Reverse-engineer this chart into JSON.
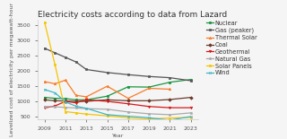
{
  "title": "Electricity costs according to data from Lazard",
  "xlabel": "Year",
  "ylabel": "Levelized cost of electricity per megawatt-hour",
  "years": [
    2009,
    2010,
    2011,
    2012,
    2013,
    2015,
    2017,
    2019,
    2021,
    2023
  ],
  "series": {
    "Nuclear": {
      "color": "#1a9641",
      "marker": "o",
      "values": [
        1130,
        1100,
        1090,
        1050,
        1050,
        1170,
        1480,
        1470,
        1630,
        1720
      ]
    },
    "Gas (peaker)": {
      "color": "#555555",
      "marker": "s",
      "values": [
        2750,
        2600,
        2450,
        2300,
        2050,
        1950,
        1880,
        1820,
        1780,
        1680
      ]
    },
    "Thermal Solar": {
      "color": "#f97b2a",
      "marker": "^",
      "values": [
        1650,
        1580,
        1700,
        1200,
        1150,
        1500,
        1100,
        1430,
        1400,
        null
      ]
    },
    "Coal": {
      "color": "#6b3a2a",
      "marker": "D",
      "values": [
        1050,
        1020,
        1010,
        1000,
        1000,
        1050,
        1020,
        1020,
        1060,
        1130
      ]
    },
    "Geothermal": {
      "color": "#d7191c",
      "marker": "v",
      "values": [
        780,
        850,
        1000,
        950,
        1050,
        1000,
        920,
        830,
        790,
        790
      ]
    },
    "Natural Gas": {
      "color": "#aaaaaa",
      "marker": "p",
      "values": [
        830,
        820,
        800,
        780,
        760,
        740,
        650,
        590,
        560,
        620
      ]
    },
    "Solar Panels": {
      "color": "#f5c400",
      "marker": "h",
      "values": [
        3600,
        2200,
        660,
        620,
        580,
        520,
        460,
        420,
        450,
        470
      ]
    },
    "Wind": {
      "color": "#41b6c4",
      "marker": "x",
      "values": [
        1390,
        1280,
        980,
        840,
        770,
        560,
        510,
        460,
        380,
        500
      ]
    }
  },
  "ylim": [
    400,
    3700
  ],
  "yticks": [
    500,
    1000,
    1500,
    2000,
    2500,
    3000,
    3500
  ],
  "xticks": [
    2009,
    2011,
    2013,
    2015,
    2017,
    2019,
    2021,
    2023
  ],
  "bg_color": "#f5f5f5",
  "title_fontsize": 6.5,
  "label_fontsize": 4.5,
  "tick_fontsize": 4.5,
  "legend_fontsize": 4.8,
  "linewidth": 0.9,
  "markersize": 1.8
}
